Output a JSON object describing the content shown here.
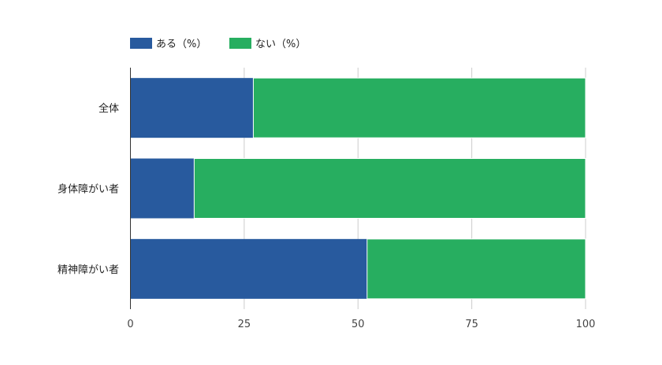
{
  "chart_data": {
    "type": "bar",
    "orientation": "horizontal",
    "stacked": true,
    "categories": [
      "全体",
      "身体障がい者",
      "精神障がい者"
    ],
    "series": [
      {
        "name": "ある（%）",
        "values": [
          27,
          14,
          52
        ],
        "color": "#285a9e"
      },
      {
        "name": "ない（%）",
        "values": [
          73,
          86,
          48
        ],
        "color": "#27ae60"
      }
    ],
    "xlim": [
      0,
      100
    ],
    "xticks": [
      0,
      25,
      50,
      75,
      100
    ],
    "grid": true,
    "legend": "top-left",
    "title": "",
    "xlabel": "",
    "ylabel": ""
  }
}
